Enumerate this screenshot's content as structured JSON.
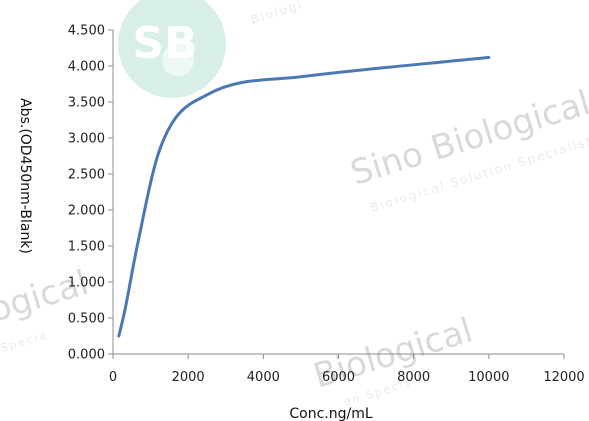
{
  "chart_data": {
    "type": "line",
    "xlabel": "Conc.ng/mL",
    "ylabel": "Abs.(OD450nm-Blank)",
    "xlim": [
      0,
      12000
    ],
    "ylim": [
      0,
      4.5
    ],
    "x_ticks": [
      "0",
      "2000",
      "4000",
      "6000",
      "8000",
      "10000",
      "12000"
    ],
    "y_ticks": [
      "0.000",
      "0.500",
      "1.000",
      "1.500",
      "2.000",
      "2.500",
      "3.000",
      "3.500",
      "4.000",
      "4.500"
    ],
    "grid": false,
    "series": [
      {
        "color": "#4a78b5",
        "x": [
          156,
          313,
          625,
          1250,
          2500,
          5000,
          10000
        ],
        "y": [
          0.25,
          0.6,
          1.45,
          2.85,
          3.6,
          3.85,
          4.12
        ]
      }
    ]
  },
  "watermark": {
    "logo_text": "SB",
    "brand": "Sino Biological",
    "tagline": "Biological Solution Specialist",
    "fragment_left": "ogical",
    "fragment_left_small": "Specia",
    "fragment_bottom": "Biological",
    "fragment_bottom_small": "on Speciali",
    "fragment_top": "Biologi"
  }
}
